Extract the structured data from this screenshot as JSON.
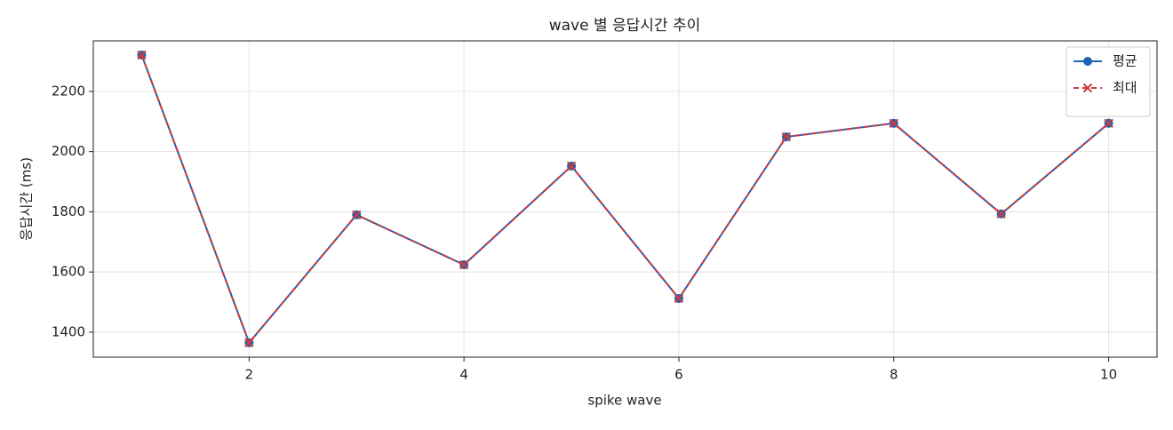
{
  "chart_data": {
    "type": "line",
    "title": "wave 별 응답시간 추이",
    "x_label": "spike wave",
    "y_label": "응답시간 (ms)",
    "x": [
      1,
      2,
      3,
      4,
      5,
      6,
      7,
      8,
      9,
      10
    ],
    "series": [
      {
        "name": "평균",
        "color": "#1f63b5",
        "marker": "o",
        "dashed": false,
        "values": [
          2321,
          1365,
          1790,
          1624,
          1952,
          1512,
          2049,
          2094,
          1793,
          2094
        ]
      },
      {
        "name": "최대",
        "color": "#d03a3a",
        "marker": "x",
        "dashed": true,
        "values": [
          2321,
          1365,
          1790,
          1624,
          1952,
          1512,
          2049,
          2094,
          1793,
          2094
        ]
      }
    ],
    "xlim": [
      0.55,
      10.45
    ],
    "ylim": [
      1317,
      2368
    ],
    "xticks": [
      2,
      4,
      6,
      8,
      10
    ],
    "yticks": [
      1400,
      1600,
      1800,
      2000,
      2200
    ],
    "grid": true,
    "legend": "upper right"
  }
}
